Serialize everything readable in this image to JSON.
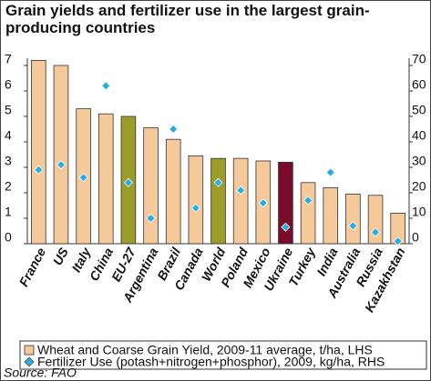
{
  "chart_data": {
    "type": "bar",
    "title": "Grain yields and fertilizer use in the largest grain-producing countries",
    "categories": [
      "France",
      "US",
      "Italy",
      "China",
      "EU-27",
      "Argentina",
      "Brazil",
      "Canada",
      "World",
      "Poland",
      "Mexico",
      "Ukraine",
      "Turkey",
      "India",
      "Australia",
      "Russia",
      "Kazakhstan"
    ],
    "series": [
      {
        "name": "Wheat and Coarse Grain Yield, 2009-11 average, t/ha, LHS",
        "color": "#f6c99b",
        "colors": [
          "#f6c99b",
          "#f6c99b",
          "#f6c99b",
          "#f6c99b",
          "#9c9c2a",
          "#f6c99b",
          "#f6c99b",
          "#f6c99b",
          "#9c9c2a",
          "#f6c99b",
          "#f6c99b",
          "#7a0b2c",
          "#f6c99b",
          "#f6c99b",
          "#f6c99b",
          "#f6c99b",
          "#f6c99b"
        ],
        "values": [
          7.2,
          7.0,
          5.3,
          5.1,
          5.0,
          4.55,
          4.1,
          3.45,
          3.35,
          3.35,
          3.25,
          3.2,
          2.4,
          2.2,
          1.95,
          1.9,
          1.2
        ]
      },
      {
        "name": "Fertilizer Use (potash+nitrogen+phosphor), 2009, kg/ha, RHS",
        "color": "#22aee6",
        "axis": "y2",
        "values": [
          29,
          31,
          26,
          62,
          24,
          10,
          45,
          14,
          24,
          21,
          16,
          6.5,
          17,
          28,
          7,
          4.5,
          1
        ]
      }
    ],
    "ylim": [
      0,
      7
    ],
    "yticks": [
      0,
      1,
      2,
      3,
      4,
      5,
      6,
      7
    ],
    "y2lim": [
      0,
      70
    ],
    "y2ticks": [
      0,
      10,
      20,
      30,
      40,
      50,
      60,
      70
    ],
    "source": "Source: FAO"
  }
}
